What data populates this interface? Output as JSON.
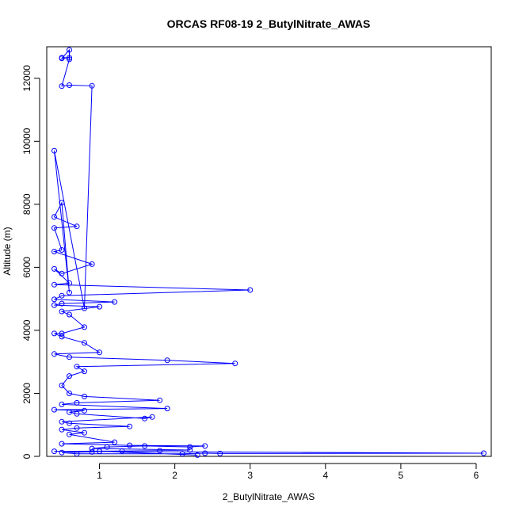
{
  "chart_data": {
    "type": "line",
    "title": "ORCAS RF08-19 2_ButylNitrate_AWAS",
    "xlabel": "2_ButylNitrate_AWAS",
    "ylabel": "Altitude (m)",
    "xlim": [
      0.3,
      6.2
    ],
    "ylim": [
      0,
      13000
    ],
    "xticks": [
      1,
      2,
      3,
      4,
      5,
      6
    ],
    "yticks": [
      0,
      2000,
      4000,
      6000,
      8000,
      10000,
      12000
    ],
    "grid": false,
    "series_color": "#0000ff",
    "series": [
      {
        "markers": "open-circle",
        "points": [
          [
            0.5,
            12650
          ],
          [
            0.6,
            12650
          ],
          [
            0.5,
            12630
          ],
          [
            0.6,
            12900
          ],
          [
            0.6,
            12600
          ],
          [
            0.5,
            11750
          ],
          [
            0.6,
            11780
          ],
          [
            0.9,
            11760
          ],
          [
            0.8,
            4700
          ],
          [
            0.4,
            9700
          ],
          [
            0.6,
            5200
          ],
          [
            0.5,
            8050
          ],
          [
            0.4,
            7600
          ],
          [
            0.7,
            7300
          ],
          [
            0.4,
            7250
          ],
          [
            0.5,
            6550
          ],
          [
            0.4,
            6500
          ],
          [
            0.9,
            6100
          ],
          [
            0.5,
            5800
          ],
          [
            0.4,
            5950
          ],
          [
            0.6,
            5500
          ],
          [
            0.4,
            5450
          ],
          [
            3.0,
            5280
          ],
          [
            0.5,
            5100
          ],
          [
            0.4,
            4980
          ],
          [
            1.2,
            4900
          ],
          [
            0.5,
            4850
          ],
          [
            0.4,
            4800
          ],
          [
            1.0,
            4750
          ],
          [
            0.5,
            4600
          ],
          [
            0.6,
            4500
          ],
          [
            0.8,
            4100
          ],
          [
            0.5,
            3900
          ],
          [
            0.4,
            3900
          ],
          [
            0.5,
            3800
          ],
          [
            0.8,
            3600
          ],
          [
            1.0,
            3300
          ],
          [
            0.4,
            3250
          ],
          [
            0.6,
            3150
          ],
          [
            1.9,
            3050
          ],
          [
            2.8,
            2950
          ],
          [
            0.7,
            2850
          ],
          [
            0.8,
            2700
          ],
          [
            0.6,
            2550
          ],
          [
            0.5,
            2250
          ],
          [
            0.6,
            2000
          ],
          [
            0.8,
            1900
          ],
          [
            1.8,
            1780
          ],
          [
            0.7,
            1700
          ],
          [
            0.5,
            1650
          ],
          [
            1.9,
            1520
          ],
          [
            0.4,
            1480
          ],
          [
            0.8,
            1450
          ],
          [
            0.6,
            1400
          ],
          [
            0.7,
            1350
          ],
          [
            1.6,
            1200
          ],
          [
            1.7,
            1250
          ],
          [
            0.5,
            1100
          ],
          [
            0.6,
            1050
          ],
          [
            1.4,
            950
          ],
          [
            0.7,
            900
          ],
          [
            0.5,
            850
          ],
          [
            0.8,
            750
          ],
          [
            0.6,
            700
          ],
          [
            1.2,
            450
          ],
          [
            0.5,
            400
          ],
          [
            1.4,
            350
          ],
          [
            2.4,
            330
          ],
          [
            2.2,
            300
          ],
          [
            1.6,
            330
          ],
          [
            1.1,
            300
          ],
          [
            0.9,
            250
          ],
          [
            2.2,
            200
          ],
          [
            1.8,
            180
          ],
          [
            1.3,
            170
          ],
          [
            0.4,
            160
          ],
          [
            6.1,
            100
          ],
          [
            2.6,
            90
          ],
          [
            2.4,
            100
          ],
          [
            2.1,
            80
          ],
          [
            0.7,
            80
          ],
          [
            0.5,
            120
          ],
          [
            0.9,
            140
          ],
          [
            1.0,
            160
          ],
          [
            2.3,
            40
          ]
        ]
      }
    ]
  }
}
